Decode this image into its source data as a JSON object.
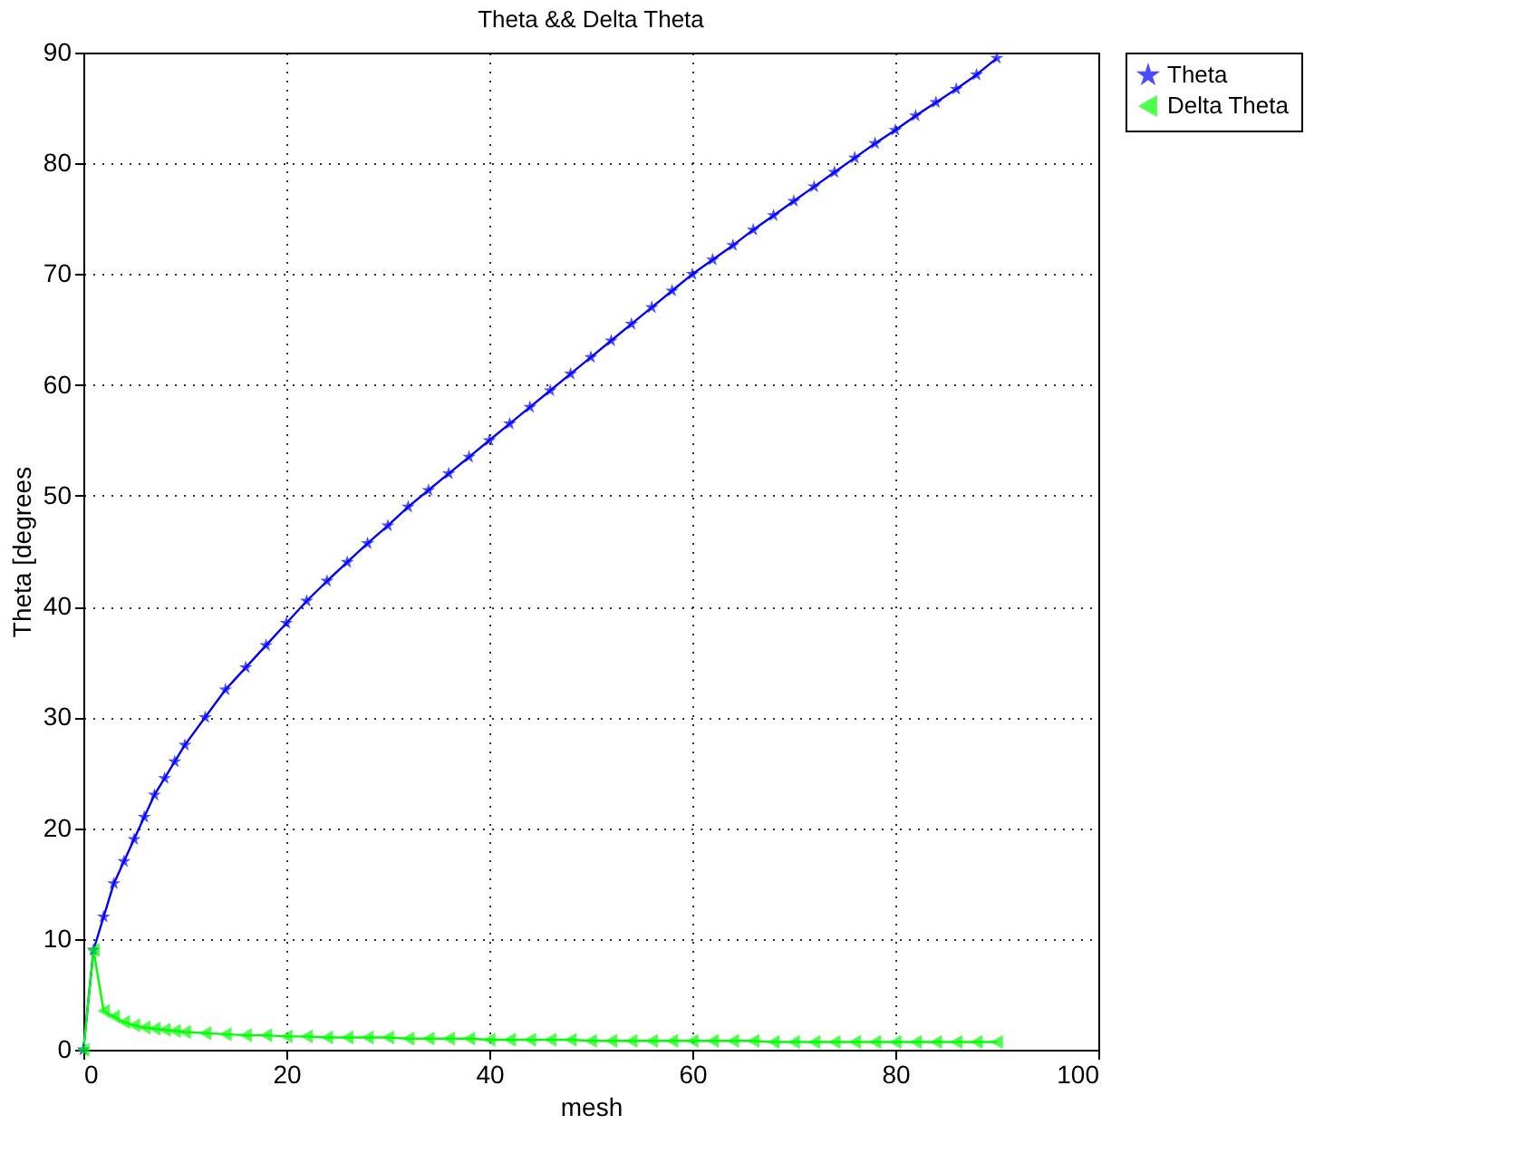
{
  "chart_data": {
    "type": "line",
    "title": "Theta && Delta Theta",
    "xlabel": "mesh",
    "ylabel": "Theta [degrees",
    "xlim": [
      0,
      100
    ],
    "xticks": [
      0,
      20,
      40,
      60,
      80,
      100
    ],
    "ylim": [
      0,
      90
    ],
    "yticks": [
      0,
      10,
      20,
      30,
      40,
      50,
      60,
      70,
      80,
      90
    ],
    "grid": true,
    "line_style": "solid",
    "legend": "top right",
    "x": [
      0,
      1,
      2,
      3,
      4,
      5,
      6,
      7,
      8,
      9,
      10,
      12,
      14,
      16,
      18,
      20,
      22,
      24,
      26,
      28,
      30,
      32,
      34,
      36,
      38,
      40,
      42,
      44,
      46,
      48,
      50,
      52,
      54,
      56,
      58,
      60,
      62,
      64,
      66,
      68,
      70,
      72,
      74,
      76,
      78,
      80,
      82,
      84,
      86,
      88,
      90
    ],
    "series": [
      {
        "name": "Theta",
        "color": "#0000ff",
        "marker": "star",
        "values": [
          0,
          9,
          12,
          15,
          17,
          19,
          21,
          23,
          24.5,
          26,
          27.5,
          30,
          32.5,
          34.5,
          36.5,
          38.5,
          40.5,
          42.3,
          44,
          45.7,
          47.3,
          49,
          50.5,
          52,
          53.5,
          55,
          56.5,
          58,
          59.5,
          61,
          62.5,
          64,
          65.5,
          67,
          68.5,
          70,
          71.3,
          72.6,
          74,
          75.3,
          76.6,
          77.9,
          79.2,
          80.5,
          81.8,
          83,
          84.3,
          85.5,
          86.7,
          88,
          89.5
        ]
      },
      {
        "name": "Delta Theta",
        "color": "#00ff00",
        "marker": "triangle",
        "values": [
          0,
          9,
          3.5,
          3,
          2.5,
          2.2,
          2,
          1.9,
          1.8,
          1.7,
          1.6,
          1.5,
          1.4,
          1.3,
          1.3,
          1.2,
          1.2,
          1.1,
          1.1,
          1.1,
          1.1,
          1,
          1,
          1,
          1,
          0.9,
          0.9,
          0.9,
          0.9,
          0.9,
          0.8,
          0.8,
          0.8,
          0.8,
          0.8,
          0.8,
          0.8,
          0.8,
          0.8,
          0.7,
          0.7,
          0.7,
          0.7,
          0.7,
          0.7,
          0.7,
          0.7,
          0.7,
          0.7,
          0.7,
          0.7
        ]
      }
    ]
  }
}
